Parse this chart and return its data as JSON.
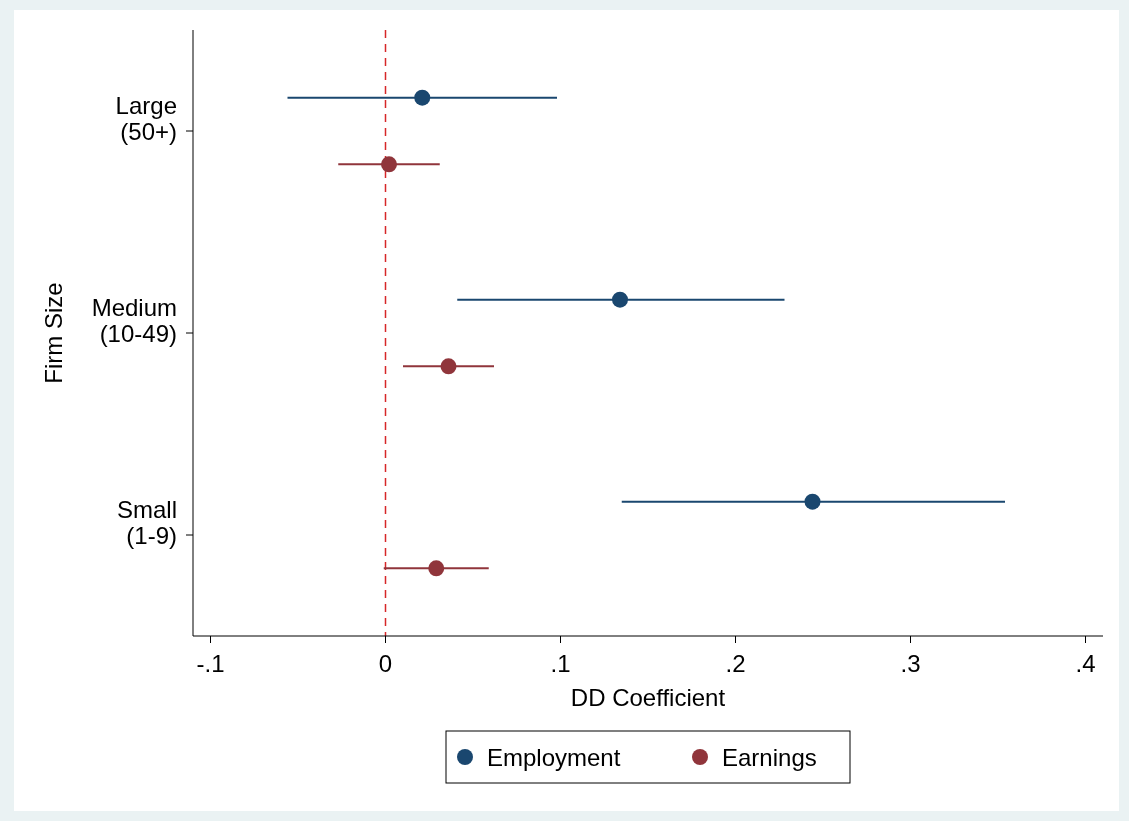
{
  "chart_data": {
    "type": "scatter",
    "orientation": "horizontal",
    "xlabel": "DD Coefficient",
    "ylabel": "Firm Size",
    "categories": [
      "Large\n(50+)",
      "Medium\n(10-49)",
      "Small\n(1-9)"
    ],
    "series": [
      {
        "name": "Employment",
        "color": "#1a476f",
        "values": [
          0.021,
          0.134,
          0.244
        ],
        "errors": [
          [
            -0.056,
            0.098
          ],
          [
            0.041,
            0.228
          ],
          [
            0.135,
            0.354
          ]
        ]
      },
      {
        "name": "Earnings",
        "color": "#90353b",
        "values": [
          0.002,
          0.036,
          0.029
        ],
        "errors": [
          [
            -0.027,
            0.031
          ],
          [
            0.01,
            0.062
          ],
          [
            -0.001,
            0.059
          ]
        ]
      }
    ],
    "xlim": [
      -0.11,
      0.41
    ],
    "xticks": [
      {
        "value": -0.1,
        "label": "-.1"
      },
      0,
      {
        "value": 0.1,
        "label": ".1"
      },
      {
        "value": 0.2,
        "label": ".2"
      },
      {
        "value": 0.3,
        "label": ".3"
      },
      {
        "value": 0.4,
        "label": ".4"
      }
    ],
    "ref_lines": [
      {
        "axis": "x",
        "value": 0,
        "color": "#d62728",
        "line_style": "dashed"
      }
    ],
    "legend": "bottom",
    "marker": "circle"
  }
}
